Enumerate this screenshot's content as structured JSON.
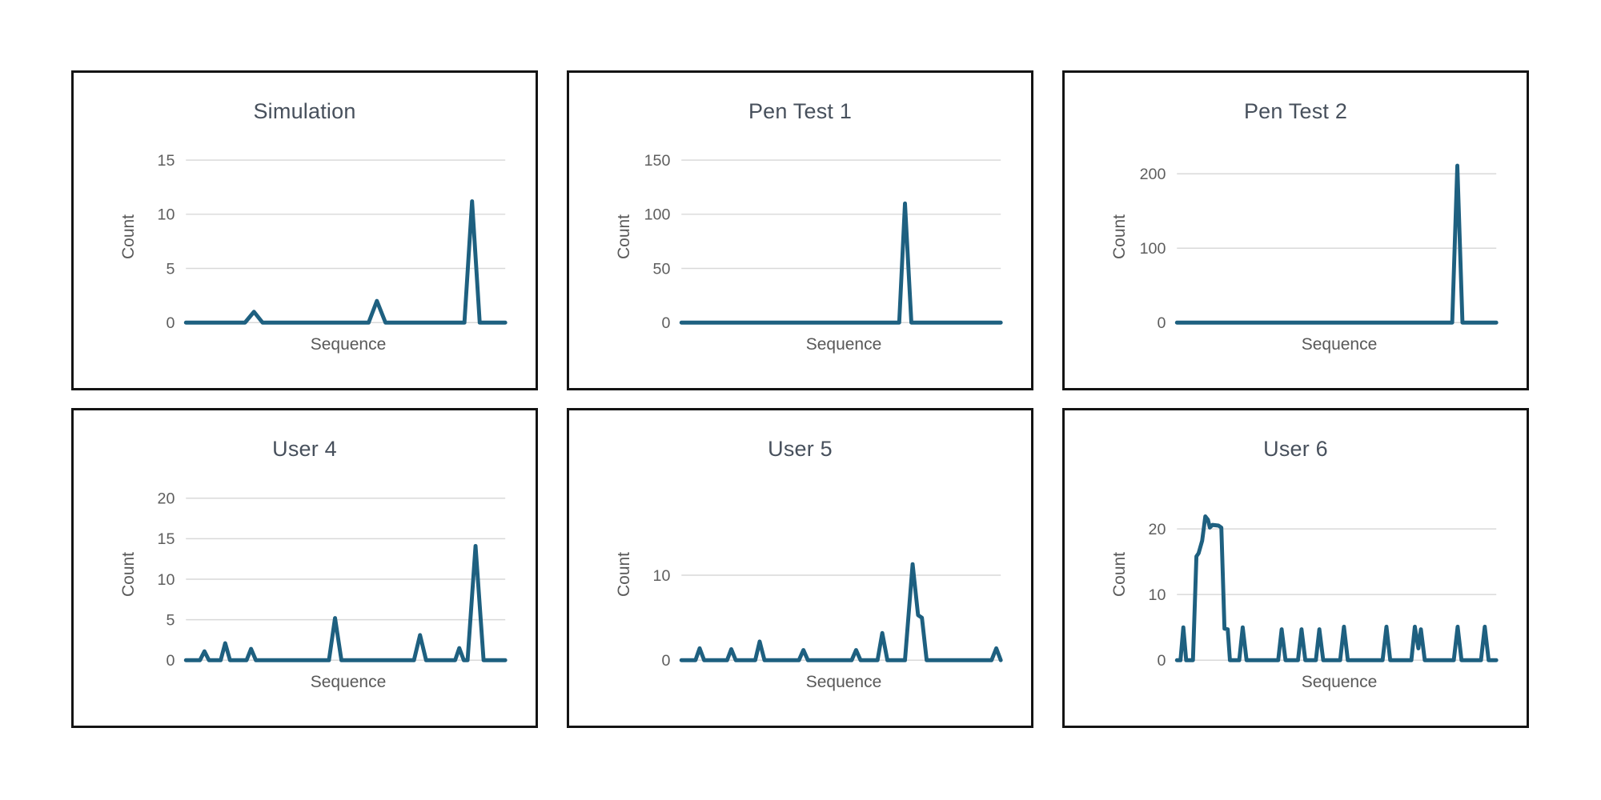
{
  "page": {
    "background": "#ffffff"
  },
  "style": {
    "line_color": "#1E6080",
    "grid_color": "#D9D9D9",
    "tick_color": "#5E5E5E",
    "axis_label_color": "#595959",
    "title_color": "#47505C",
    "panel_border_color": "#141414"
  },
  "chart_data": [
    {
      "type": "line",
      "title": "Simulation",
      "xlabel": "Sequence",
      "ylabel": "Count",
      "yticks": [
        0,
        5,
        10,
        15
      ],
      "ylim": [
        0,
        16
      ],
      "x_unit": "normalized sequence position (0-1)",
      "grid": true,
      "legend": "none",
      "points": [
        [
          0,
          0
        ],
        [
          0.185,
          0
        ],
        [
          0.213,
          1
        ],
        [
          0.24,
          0
        ],
        [
          0.572,
          0
        ],
        [
          0.598,
          2
        ],
        [
          0.625,
          0
        ],
        [
          0.872,
          0
        ],
        [
          0.896,
          11.2
        ],
        [
          0.92,
          0
        ],
        [
          1,
          0
        ]
      ]
    },
    {
      "type": "line",
      "title": "Pen Test 1",
      "xlabel": "Sequence",
      "ylabel": "Count",
      "yticks": [
        0,
        50,
        100,
        150
      ],
      "ylim": [
        0,
        160
      ],
      "x_unit": "normalized sequence position (0-1)",
      "grid": true,
      "legend": "none",
      "points": [
        [
          0,
          0
        ],
        [
          0.682,
          0
        ],
        [
          0.7,
          110
        ],
        [
          0.72,
          0
        ],
        [
          1,
          0
        ]
      ]
    },
    {
      "type": "line",
      "title": "Pen Test 2",
      "xlabel": "Sequence",
      "ylabel": "Count",
      "yticks": [
        0,
        100,
        200
      ],
      "ylim": [
        0,
        233
      ],
      "x_unit": "normalized sequence position (0-1)",
      "grid": true,
      "legend": "none",
      "points": [
        [
          0,
          0
        ],
        [
          0.862,
          0
        ],
        [
          0.878,
          211
        ],
        [
          0.894,
          0
        ],
        [
          1,
          0
        ]
      ]
    },
    {
      "type": "line",
      "title": "User 4",
      "xlabel": "Sequence",
      "ylabel": "Count",
      "yticks": [
        0,
        5,
        10,
        15,
        20
      ],
      "ylim": [
        0,
        21.4
      ],
      "x_unit": "normalized sequence position (0-1)",
      "grid": true,
      "legend": "none",
      "points": [
        [
          0,
          0
        ],
        [
          0.044,
          0
        ],
        [
          0.058,
          1.1
        ],
        [
          0.072,
          0
        ],
        [
          0.109,
          0
        ],
        [
          0.123,
          2.1
        ],
        [
          0.138,
          0
        ],
        [
          0.19,
          0
        ],
        [
          0.204,
          1.4
        ],
        [
          0.219,
          0
        ],
        [
          0.448,
          0
        ],
        [
          0.467,
          5.2
        ],
        [
          0.487,
          0
        ],
        [
          0.714,
          0
        ],
        [
          0.733,
          3.1
        ],
        [
          0.752,
          0
        ],
        [
          0.843,
          0
        ],
        [
          0.856,
          1.5
        ],
        [
          0.87,
          0
        ],
        [
          0.882,
          0
        ],
        [
          0.907,
          14.1
        ],
        [
          0.932,
          0
        ],
        [
          1,
          0
        ]
      ]
    },
    {
      "type": "line",
      "title": "User 5",
      "xlabel": "Sequence",
      "ylabel": "Count",
      "yticks": [
        0,
        10
      ],
      "ylim": [
        0,
        20.4
      ],
      "x_unit": "normalized sequence position (0-1)",
      "grid": true,
      "legend": "none",
      "points": [
        [
          0,
          0
        ],
        [
          0.044,
          0
        ],
        [
          0.057,
          1.4
        ],
        [
          0.071,
          0
        ],
        [
          0.143,
          0
        ],
        [
          0.156,
          1.3
        ],
        [
          0.17,
          0
        ],
        [
          0.231,
          0
        ],
        [
          0.245,
          2.2
        ],
        [
          0.26,
          0
        ],
        [
          0.368,
          0
        ],
        [
          0.382,
          1.2
        ],
        [
          0.396,
          0
        ],
        [
          0.533,
          0
        ],
        [
          0.547,
          1.2
        ],
        [
          0.561,
          0
        ],
        [
          0.614,
          0
        ],
        [
          0.629,
          3.2
        ],
        [
          0.645,
          0
        ],
        [
          0.7,
          0
        ],
        [
          0.724,
          11.3
        ],
        [
          0.741,
          5.3
        ],
        [
          0.753,
          5
        ],
        [
          0.768,
          0
        ],
        [
          0.971,
          0
        ],
        [
          0.986,
          1.4
        ],
        [
          1,
          0
        ]
      ]
    },
    {
      "type": "line",
      "title": "User 6",
      "xlabel": "Sequence",
      "ylabel": "Count",
      "yticks": [
        0,
        10,
        20
      ],
      "ylim": [
        0,
        26.4
      ],
      "x_unit": "normalized sequence position (0-1)",
      "grid": true,
      "legend": "none",
      "points": [
        [
          0,
          0
        ],
        [
          0.011,
          0
        ],
        [
          0.02,
          5
        ],
        [
          0.029,
          0
        ],
        [
          0.05,
          0
        ],
        [
          0.061,
          15.8
        ],
        [
          0.068,
          16.3
        ],
        [
          0.079,
          18.2
        ],
        [
          0.089,
          21.9
        ],
        [
          0.097,
          21.4
        ],
        [
          0.103,
          20.2
        ],
        [
          0.111,
          20.6
        ],
        [
          0.13,
          20.5
        ],
        [
          0.139,
          20.2
        ],
        [
          0.149,
          4.8
        ],
        [
          0.159,
          4.7
        ],
        [
          0.166,
          0
        ],
        [
          0.195,
          0
        ],
        [
          0.206,
          5
        ],
        [
          0.218,
          0
        ],
        [
          0.317,
          0
        ],
        [
          0.328,
          4.7
        ],
        [
          0.34,
          0
        ],
        [
          0.379,
          0
        ],
        [
          0.39,
          4.7
        ],
        [
          0.402,
          0
        ],
        [
          0.435,
          0
        ],
        [
          0.446,
          4.7
        ],
        [
          0.458,
          0
        ],
        [
          0.511,
          0
        ],
        [
          0.523,
          5.1
        ],
        [
          0.535,
          0
        ],
        [
          0.644,
          0
        ],
        [
          0.656,
          5.1
        ],
        [
          0.668,
          0
        ],
        [
          0.734,
          0
        ],
        [
          0.745,
          5.1
        ],
        [
          0.756,
          1.8
        ],
        [
          0.764,
          4.7
        ],
        [
          0.776,
          0
        ],
        [
          0.867,
          0
        ],
        [
          0.879,
          5.1
        ],
        [
          0.891,
          0
        ],
        [
          0.952,
          0
        ],
        [
          0.964,
          5.1
        ],
        [
          0.976,
          0
        ],
        [
          1,
          0
        ]
      ]
    }
  ]
}
